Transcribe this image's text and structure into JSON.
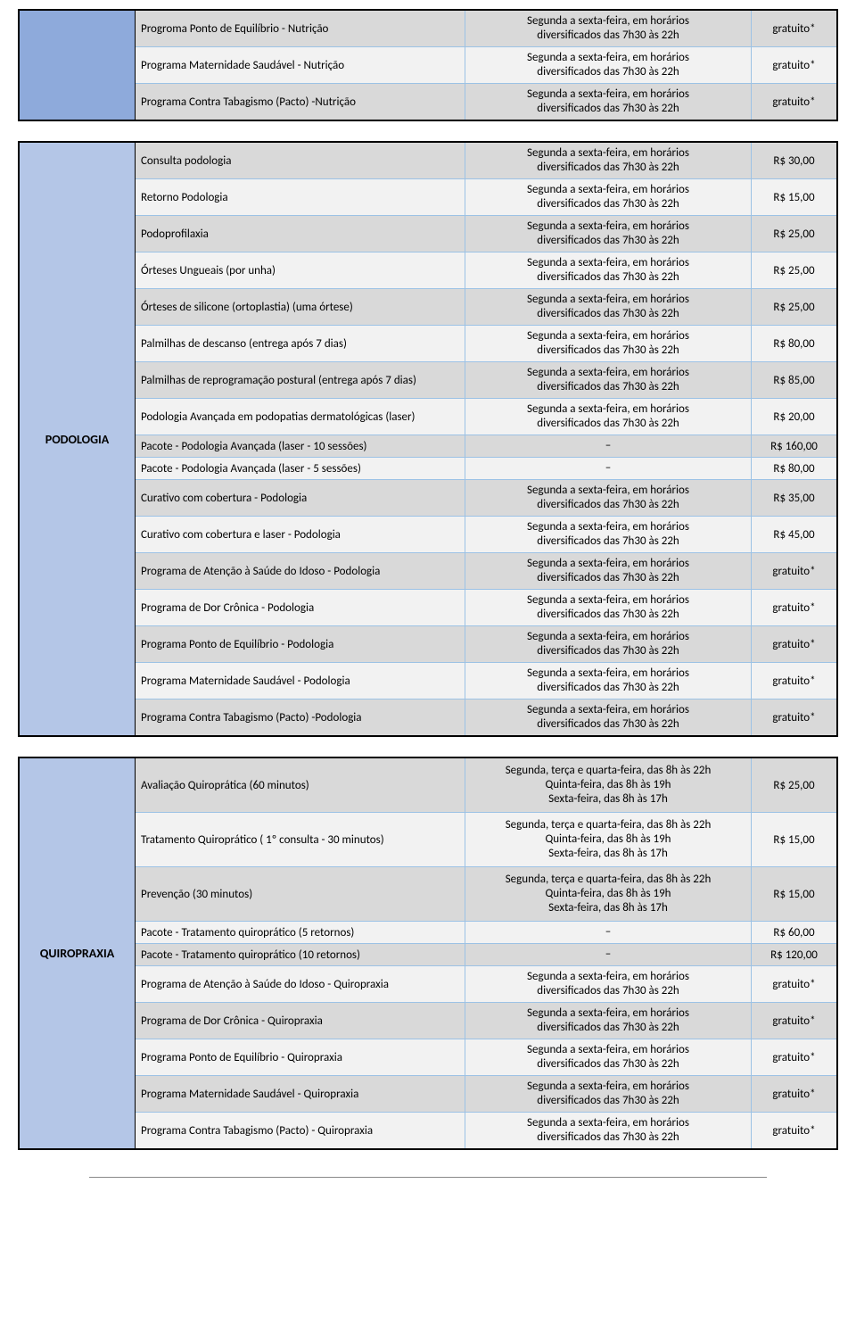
{
  "colors": {
    "border_main": "#000000",
    "border_cell": "#9cc2e5",
    "row_odd": "#d9d9d9",
    "row_even": "#f2f2f2",
    "cat_nutricao": "#8eaadb",
    "cat_podologia": "#b4c6e7",
    "cat_quiropraxia": "#b4c6e7"
  },
  "sections": [
    {
      "id": "nutricao",
      "label": "",
      "cat_bg_key": "cat_nutricao",
      "rows": [
        {
          "svc": "Progroma Ponto de Equilíbrio - Nutrição",
          "sched": "Segunda a sexta-feira, em horários\ndiversificados das 7h30 às 22h",
          "price": "gratuito*",
          "tall": true
        },
        {
          "svc": "Programa Maternidade Saudável - Nutrição",
          "sched": "Segunda a sexta-feira, em horários\ndiversificados das 7h30 às 22h",
          "price": "gratuito*",
          "tall": true
        },
        {
          "svc": "Programa Contra Tabagismo (Pacto) -Nutrição",
          "sched": "Segunda a sexta-feira, em horários\ndiversificados das 7h30 às 22h",
          "price": "gratuito*",
          "tall": true
        }
      ]
    },
    {
      "id": "podologia",
      "label": "PODOLOGIA",
      "cat_bg_key": "cat_podologia",
      "rows": [
        {
          "svc": "Consulta podologia",
          "sched": "Segunda a sexta-feira, em horários\ndiversificados das 7h30 às 22h",
          "price": "R$ 30,00",
          "tall": true
        },
        {
          "svc": "Retorno Podologia",
          "sched": "Segunda a sexta-feira, em horários\ndiversificados das 7h30 às 22h",
          "price": "R$ 15,00",
          "tall": true
        },
        {
          "svc": "Podoprofilaxia",
          "sched": "Segunda a sexta-feira, em horários\ndiversificados das 7h30 às 22h",
          "price": "R$ 25,00",
          "tall": true
        },
        {
          "svc": "Órteses Ungueais (por unha)",
          "sched": "Segunda a sexta-feira, em horários\ndiversificados das 7h30 às 22h",
          "price": "R$ 25,00",
          "tall": true
        },
        {
          "svc": "Órteses de silicone (ortoplastia) (uma órtese)",
          "sched": "Segunda a sexta-feira, em horários\ndiversificados das 7h30 às 22h",
          "price": "R$ 25,00",
          "tall": true
        },
        {
          "svc": "Palmilhas de descanso (entrega após 7 dias)",
          "sched": "Segunda a sexta-feira, em horários\ndiversificados das 7h30 às 22h",
          "price": "R$ 80,00",
          "tall": true
        },
        {
          "svc": "Palmilhas de reprogramação postural (entrega após 7 dias)",
          "sched": "Segunda a sexta-feira, em horários\ndiversificados das 7h30 às 22h",
          "price": "R$ 85,00",
          "tall": true
        },
        {
          "svc": "Podologia Avançada em podopatias dermatológicas (laser)",
          "sched": "Segunda a sexta-feira, em horários\ndiversificados das 7h30 às 22h",
          "price": "R$ 20,00",
          "tall": true
        },
        {
          "svc": "Pacote - Podologia Avançada (laser - 10 sessões)",
          "sched": "–",
          "price": "R$ 160,00",
          "tall": false
        },
        {
          "svc": "Pacote - Podologia Avançada (laser - 5 sessões)",
          "sched": "–",
          "price": "R$ 80,00",
          "tall": false
        },
        {
          "svc": "Curativo com cobertura - Podologia",
          "sched": "Segunda a sexta-feira, em horários\ndiversificados das 7h30 às 22h",
          "price": "R$ 35,00",
          "tall": true
        },
        {
          "svc": "Curativo com cobertura e laser - Podologia",
          "sched": "Segunda a sexta-feira, em horários\ndiversificados das 7h30 às 22h",
          "price": "R$ 45,00",
          "tall": true
        },
        {
          "svc": "Programa de Atenção à Saúde do Idoso - Podologia",
          "sched": "Segunda a sexta-feira, em horários\ndiversificados das 7h30 às 22h",
          "price": "gratuito*",
          "tall": true
        },
        {
          "svc": "Programa de Dor Crônica - Podologia",
          "sched": "Segunda a sexta-feira, em horários\ndiversificados das 7h30 às 22h",
          "price": "gratuito*",
          "tall": true
        },
        {
          "svc": "Programa Ponto de Equilíbrio - Podologia",
          "sched": "Segunda a sexta-feira, em horários\ndiversificados das 7h30 às 22h",
          "price": "gratuito*",
          "tall": true
        },
        {
          "svc": "Programa Maternidade Saudável - Podologia",
          "sched": "Segunda a sexta-feira, em horários\ndiversificados das 7h30 às 22h",
          "price": "gratuito*",
          "tall": true
        },
        {
          "svc": "Programa Contra Tabagismo (Pacto) -Podologia",
          "sched": "Segunda a sexta-feira, em horários\ndiversificados das 7h30 às 22h",
          "price": "gratuito*",
          "tall": true
        }
      ]
    },
    {
      "id": "quiropraxia",
      "label": "QUIROPRAXIA",
      "cat_bg_key": "cat_quiropraxia",
      "rows": [
        {
          "svc": "Avaliação Quiroprática (60 minutos)",
          "sched": "Segunda, terça e quarta-feira, das 8h às 22h\nQuinta-feira, das 8h às 19h\nSexta-feira, das 8h às 17h",
          "price": "R$ 25,00",
          "xtall": true
        },
        {
          "svc": "Tratamento Quiroprático ( 1º consulta - 30 minutos)",
          "sched": "Segunda, terça e quarta-feira, das 8h às 22h\nQuinta-feira, das 8h às 19h\nSexta-feira, das 8h às 17h",
          "price": "R$ 15,00",
          "xtall": true
        },
        {
          "svc": "Prevenção (30 minutos)",
          "sched": "Segunda, terça e quarta-feira, das 8h às 22h\nQuinta-feira, das 8h às 19h\nSexta-feira, das 8h às 17h",
          "price": "R$ 15,00",
          "xtall": true
        },
        {
          "svc": "Pacote - Tratamento quiroprático (5 retornos)",
          "sched": "–",
          "price": "R$ 60,00",
          "tall": false
        },
        {
          "svc": "Pacote - Tratamento quiroprático (10 retornos)",
          "sched": "–",
          "price": "R$ 120,00",
          "tall": false
        },
        {
          "svc": "Programa de Atenção à Saúde do Idoso - Quiropraxia",
          "sched": "Segunda a sexta-feira, em horários\ndiversificados das 7h30 às 22h",
          "price": "gratuito*",
          "tall": true
        },
        {
          "svc": "Programa de Dor Crônica - Quiropraxia",
          "sched": "Segunda a sexta-feira, em horários\ndiversificados das 7h30 às 22h",
          "price": "gratuito*",
          "tall": true
        },
        {
          "svc": "Programa Ponto de Equilíbrio - Quiropraxia",
          "sched": "Segunda a sexta-feira, em horários\ndiversificados das 7h30 às 22h",
          "price": "gratuito*",
          "tall": true
        },
        {
          "svc": "Programa Maternidade Saudável - Quiropraxia",
          "sched": "Segunda a sexta-feira, em horários\ndiversificados das 7h30 às 22h",
          "price": "gratuito*",
          "tall": true
        },
        {
          "svc": "Programa Contra Tabagismo (Pacto) - Quiropraxia",
          "sched": "Segunda a sexta-feira, em horários\ndiversificados das 7h30 às 22h",
          "price": "gratuito*",
          "tall": true
        }
      ]
    }
  ]
}
